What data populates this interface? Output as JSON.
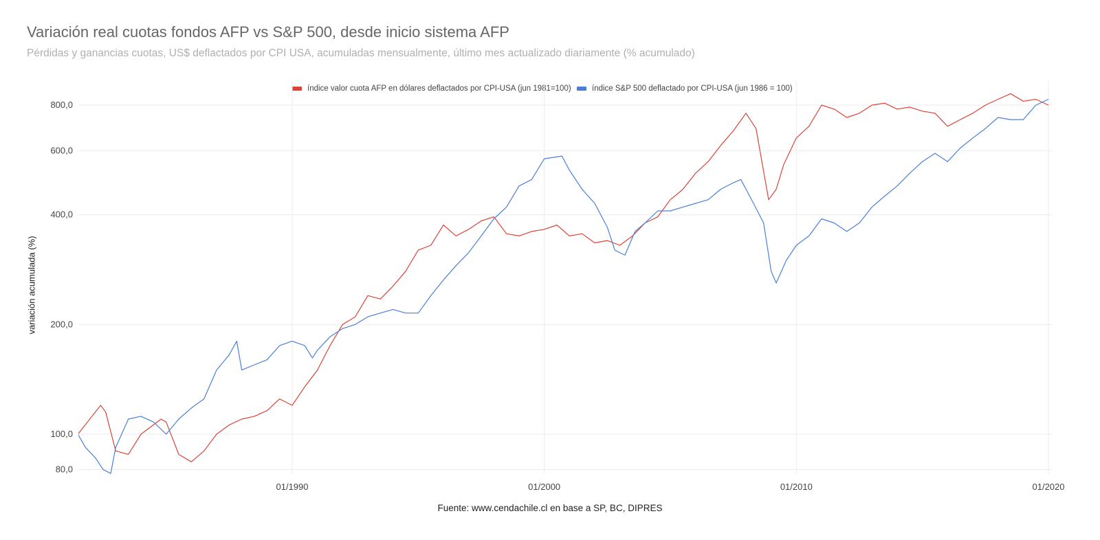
{
  "title": "Variación real cuotas fondos AFP vs S&P 500, desde inicio sistema AFP",
  "subtitle": "Pérdidas y ganancias cuotas, US$ deflactados por CPI USA, acumuladas mensualmente, último mes actualizado diariamente (% acumulado)",
  "source": "Fuente: www.cendachile.cl en base a SP, BC, DIPRES",
  "chart_data": {
    "type": "line",
    "ylabel": "variación acumulada (%)",
    "xlabel": "",
    "y_scale": "log",
    "ylim": [
      78,
      880
    ],
    "xlim": [
      1981.45,
      2020.05
    ],
    "y_ticks": [
      80,
      100,
      200,
      400,
      600,
      800
    ],
    "y_tick_labels": [
      "80,0",
      "100,0",
      "200,0",
      "400,0",
      "600,0",
      "800,0"
    ],
    "x_ticks": [
      1990,
      2000,
      2010,
      2020
    ],
    "x_tick_labels": [
      "01/1990",
      "01/2000",
      "01/2010",
      "01/2020"
    ],
    "grid": true,
    "legend_position": "top",
    "series": [
      {
        "name": "índice valor cuota AFP en dólares deflactados por CPI-USA (jun 1981=100)",
        "color": "#db4437",
        "x": [
          1981.5,
          1982.4,
          1982.6,
          1983.0,
          1983.5,
          1984.0,
          1984.8,
          1985.0,
          1985.5,
          1986.0,
          1986.5,
          1987.0,
          1987.5,
          1988.0,
          1988.5,
          1989.0,
          1989.5,
          1990.0,
          1990.5,
          1991.0,
          1991.5,
          1992.0,
          1992.5,
          1993.0,
          1993.5,
          1994.0,
          1994.5,
          1995.0,
          1995.5,
          1996.0,
          1996.5,
          1997.0,
          1997.5,
          1998.0,
          1998.5,
          1999.0,
          1999.5,
          2000.0,
          2000.5,
          2001.0,
          2001.5,
          2002.0,
          2002.5,
          2003.0,
          2003.5,
          2004.0,
          2004.5,
          2005.0,
          2005.5,
          2006.0,
          2006.5,
          2007.0,
          2007.5,
          2008.0,
          2008.4,
          2008.9,
          2009.2,
          2009.5,
          2010.0,
          2010.5,
          2011.0,
          2011.5,
          2012.0,
          2012.5,
          2013.0,
          2013.5,
          2014.0,
          2014.5,
          2015.0,
          2015.5,
          2016.0,
          2016.5,
          2017.0,
          2017.5,
          2018.0,
          2018.5,
          2019.0,
          2019.5,
          2020.0
        ],
        "y": [
          100,
          120,
          115,
          90,
          88,
          100,
          110,
          108,
          88,
          84,
          90,
          100,
          106,
          110,
          112,
          116,
          125,
          120,
          135,
          150,
          175,
          200,
          210,
          240,
          235,
          255,
          280,
          320,
          330,
          375,
          350,
          365,
          385,
          395,
          355,
          350,
          360,
          365,
          375,
          350,
          355,
          335,
          340,
          330,
          350,
          380,
          395,
          440,
          470,
          520,
          560,
          620,
          680,
          760,
          690,
          440,
          470,
          550,
          650,
          700,
          800,
          780,
          740,
          760,
          800,
          810,
          780,
          790,
          770,
          760,
          700,
          730,
          760,
          800,
          830,
          860,
          820,
          830,
          800
        ]
      },
      {
        "name": "índice S&P 500 deflactado por CPI-USA (jun 1986 = 100)",
        "color": "#4a7fd8",
        "x": [
          1981.5,
          1981.8,
          1982.2,
          1982.5,
          1982.8,
          1983.0,
          1983.5,
          1984.0,
          1984.5,
          1985.0,
          1985.5,
          1986.0,
          1986.5,
          1987.0,
          1987.5,
          1987.8,
          1988.0,
          1988.5,
          1989.0,
          1989.5,
          1990.0,
          1990.5,
          1990.8,
          1991.0,
          1991.5,
          1992.0,
          1992.5,
          1993.0,
          1993.5,
          1994.0,
          1994.5,
          1995.0,
          1995.5,
          1996.0,
          1996.5,
          1997.0,
          1997.5,
          1998.0,
          1998.5,
          1999.0,
          1999.5,
          2000.0,
          2000.7,
          2001.0,
          2001.5,
          2002.0,
          2002.5,
          2002.8,
          2003.2,
          2003.6,
          2004.0,
          2004.5,
          2005.0,
          2005.5,
          2006.0,
          2006.5,
          2007.0,
          2007.5,
          2007.8,
          2008.3,
          2008.7,
          2009.0,
          2009.2,
          2009.6,
          2010.0,
          2010.5,
          2011.0,
          2011.5,
          2012.0,
          2012.5,
          2013.0,
          2013.5,
          2014.0,
          2014.5,
          2015.0,
          2015.5,
          2016.0,
          2016.5,
          2017.0,
          2017.5,
          2018.0,
          2018.5,
          2019.0,
          2019.5,
          2020.0
        ],
        "y": [
          100,
          92,
          86,
          80,
          78,
          92,
          110,
          112,
          108,
          100,
          110,
          118,
          125,
          150,
          165,
          180,
          150,
          155,
          160,
          175,
          180,
          175,
          162,
          170,
          185,
          195,
          200,
          210,
          215,
          220,
          215,
          215,
          240,
          265,
          290,
          315,
          350,
          390,
          420,
          480,
          500,
          570,
          580,
          530,
          470,
          430,
          370,
          320,
          310,
          360,
          380,
          410,
          410,
          420,
          430,
          440,
          470,
          490,
          500,
          430,
          380,
          280,
          260,
          300,
          330,
          350,
          390,
          380,
          360,
          380,
          420,
          450,
          480,
          520,
          560,
          590,
          560,
          610,
          650,
          690,
          740,
          730,
          730,
          800,
          830
        ]
      }
    ]
  }
}
